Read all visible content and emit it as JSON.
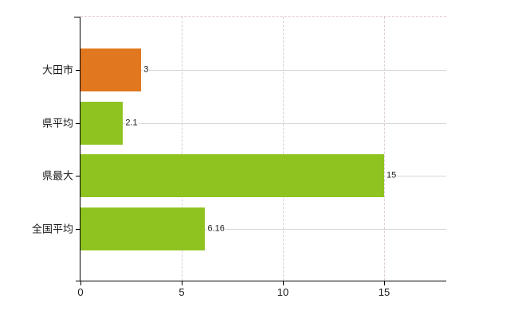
{
  "chart_data": {
    "type": "bar",
    "orientation": "horizontal",
    "title": "",
    "xlabel": "",
    "ylabel": "",
    "categories": [
      "大田市",
      "県平均",
      "県最大",
      "全国平均"
    ],
    "values": [
      3,
      2.1,
      15,
      6.16
    ],
    "value_labels": [
      "3",
      "2.1",
      "15",
      "6.16"
    ],
    "bar_colors": [
      "#e1771e",
      "#8ec320",
      "#8ec320",
      "#8ec320"
    ],
    "x_ticks": [
      0,
      5,
      10,
      15
    ],
    "x_tick_labels": [
      "0",
      "5",
      "10",
      "15"
    ],
    "xlim": [
      0,
      18.07
    ],
    "legend": "none",
    "grid": {
      "horizontal": "solid, one line per category center",
      "vertical": "dashed, at ticks 5/10/15",
      "top_border": "dashed"
    }
  },
  "colors": {
    "highlight_bar": "#e1771e",
    "default_bar": "#8ec320",
    "grid_horizontal": "#d5d9d1",
    "grid_vertical": "#dbced6",
    "plot_top_border": "#e4ccd4",
    "axis": "#000000",
    "text": "#1a1a1a",
    "background": "#ffffff"
  }
}
